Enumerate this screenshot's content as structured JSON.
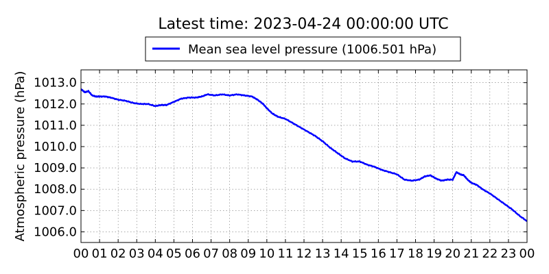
{
  "chart_data": {
    "type": "line",
    "title": "Latest time: 2023-04-24 00:00:00 UTC",
    "xlabel": "",
    "ylabel": "Atmospheric pressure (hPa)",
    "x_tick_labels": [
      "00",
      "01",
      "02",
      "03",
      "04",
      "05",
      "06",
      "07",
      "08",
      "09",
      "10",
      "11",
      "12",
      "13",
      "14",
      "15",
      "16",
      "17",
      "18",
      "19",
      "20",
      "21",
      "22",
      "23",
      "00"
    ],
    "y_ticks": [
      1006.0,
      1007.0,
      1008.0,
      1009.0,
      1010.0,
      1011.0,
      1012.0,
      1013.0
    ],
    "y_tick_labels": [
      "1006.0",
      "1007.0",
      "1008.0",
      "1009.0",
      "1010.0",
      "1011.0",
      "1012.0",
      "1013.0"
    ],
    "xlim": [
      0,
      24
    ],
    "ylim": [
      1005.5,
      1013.6
    ],
    "grid": true,
    "legend": {
      "position": "top-center",
      "entries": [
        "Mean sea level pressure (1006.501 hPa)"
      ]
    },
    "series": [
      {
        "name": "Mean sea level pressure (1006.501 hPa)",
        "color": "#0000ff",
        "x": [
          0,
          0.2,
          0.4,
          0.6,
          0.8,
          1.0,
          1.3,
          1.6,
          2.0,
          2.4,
          2.8,
          3.2,
          3.6,
          4.0,
          4.3,
          4.6,
          5.0,
          5.4,
          5.8,
          6.2,
          6.5,
          6.8,
          7.2,
          7.6,
          8.0,
          8.4,
          8.8,
          9.2,
          9.5,
          9.8,
          10.0,
          10.3,
          10.6,
          11.0,
          11.4,
          11.8,
          12.2,
          12.6,
          13.0,
          13.4,
          13.8,
          14.2,
          14.6,
          15.0,
          15.4,
          15.8,
          16.2,
          16.6,
          17.0,
          17.4,
          17.8,
          18.2,
          18.5,
          18.8,
          19.1,
          19.4,
          19.7,
          20.0,
          20.2,
          20.4,
          20.6,
          20.8,
          21.0,
          21.3,
          21.6,
          22.0,
          22.4,
          22.8,
          23.2,
          23.6,
          24.0
        ],
        "y": [
          1012.7,
          1012.55,
          1012.6,
          1012.4,
          1012.35,
          1012.35,
          1012.35,
          1012.3,
          1012.2,
          1012.15,
          1012.05,
          1012.0,
          1012.0,
          1011.9,
          1011.95,
          1011.95,
          1012.1,
          1012.25,
          1012.3,
          1012.3,
          1012.35,
          1012.45,
          1012.4,
          1012.45,
          1012.4,
          1012.45,
          1012.4,
          1012.35,
          1012.2,
          1012.0,
          1011.8,
          1011.55,
          1011.4,
          1011.3,
          1011.1,
          1010.9,
          1010.7,
          1010.5,
          1010.25,
          1009.95,
          1009.7,
          1009.45,
          1009.3,
          1009.3,
          1009.15,
          1009.05,
          1008.9,
          1008.8,
          1008.7,
          1008.45,
          1008.4,
          1008.45,
          1008.6,
          1008.65,
          1008.5,
          1008.4,
          1008.45,
          1008.45,
          1008.8,
          1008.7,
          1008.65,
          1008.45,
          1008.3,
          1008.2,
          1008.0,
          1007.8,
          1007.55,
          1007.3,
          1007.05,
          1006.75,
          1006.5
        ]
      }
    ]
  }
}
